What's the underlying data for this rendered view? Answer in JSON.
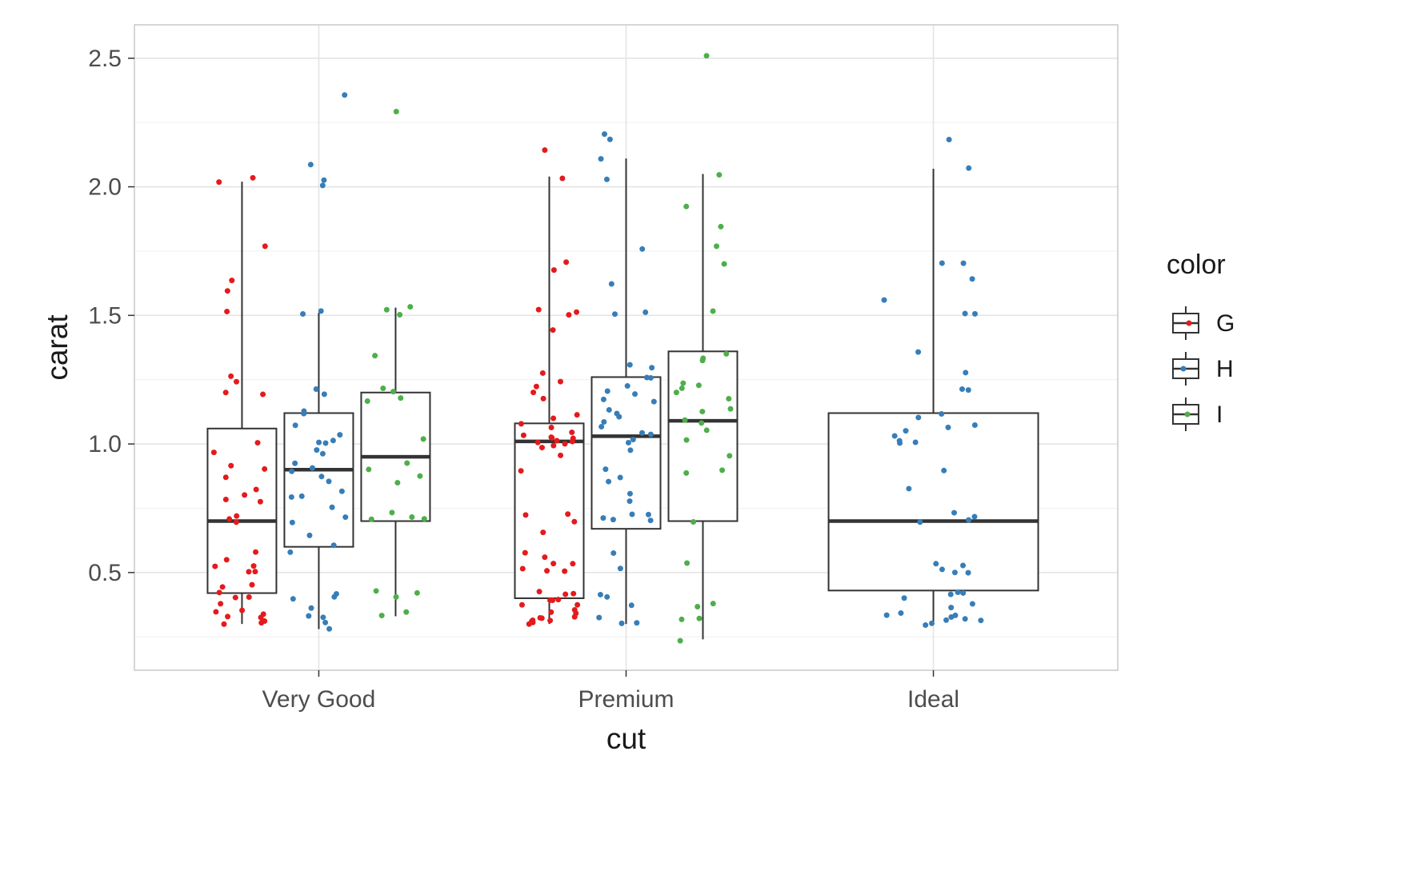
{
  "chart_data": {
    "type": "boxplot",
    "title": "",
    "xlabel": "cut",
    "ylabel": "carat",
    "categories": [
      "Very Good",
      "Premium",
      "Ideal"
    ],
    "y_ticks": [
      0.5,
      1.0,
      1.5,
      2.0,
      2.5
    ],
    "ylim": [
      0.12,
      2.63
    ],
    "grid": true,
    "legend": {
      "title": "color",
      "position": "right",
      "entries": [
        {
          "label": "G",
          "color": "#E41A1C"
        },
        {
          "label": "H",
          "color": "#377EB8"
        },
        {
          "label": "I",
          "color": "#4DAF4A"
        }
      ]
    },
    "colors": {
      "G": "#E41A1C",
      "H": "#377EB8",
      "I": "#4DAF4A"
    },
    "series": [
      {
        "category": "Very Good",
        "color": "G",
        "box": {
          "min": 0.3,
          "q1": 0.42,
          "median": 0.7,
          "q3": 1.06,
          "max": 2.02
        },
        "points": [
          2.03,
          2.02,
          1.77,
          1.63,
          1.6,
          1.51,
          1.26,
          1.24,
          1.2,
          1.19,
          1.01,
          0.96,
          0.92,
          0.9,
          0.87,
          0.83,
          0.8,
          0.79,
          0.77,
          0.72,
          0.71,
          0.7,
          0.58,
          0.55,
          0.53,
          0.52,
          0.51,
          0.5,
          0.46,
          0.44,
          0.42,
          0.41,
          0.4,
          0.38,
          0.36,
          0.35,
          0.34,
          0.33,
          0.32,
          0.31,
          0.3,
          0.3
        ]
      },
      {
        "category": "Very Good",
        "color": "H",
        "box": {
          "min": 0.28,
          "q1": 0.6,
          "median": 0.9,
          "q3": 1.12,
          "max": 1.51
        },
        "points": [
          2.35,
          2.08,
          2.02,
          2.01,
          1.51,
          1.5,
          1.22,
          1.2,
          1.13,
          1.12,
          1.08,
          1.04,
          1.02,
          1.01,
          1.0,
          0.98,
          0.96,
          0.93,
          0.91,
          0.9,
          0.88,
          0.85,
          0.82,
          0.8,
          0.79,
          0.76,
          0.72,
          0.7,
          0.64,
          0.6,
          0.58,
          0.42,
          0.4,
          0.39,
          0.36,
          0.33,
          0.32,
          0.31,
          0.28
        ]
      },
      {
        "category": "Very Good",
        "color": "I",
        "box": {
          "min": 0.33,
          "q1": 0.7,
          "median": 0.95,
          "q3": 1.2,
          "max": 1.53
        },
        "points": [
          2.29,
          1.53,
          1.52,
          1.5,
          1.35,
          1.21,
          1.2,
          1.18,
          1.17,
          1.02,
          0.93,
          0.9,
          0.87,
          0.85,
          0.73,
          0.72,
          0.71,
          0.7,
          0.43,
          0.42,
          0.4,
          0.35,
          0.33
        ]
      },
      {
        "category": "Premium",
        "color": "G",
        "box": {
          "min": 0.3,
          "q1": 0.4,
          "median": 1.01,
          "q3": 1.08,
          "max": 2.04
        },
        "points": [
          2.14,
          2.04,
          1.7,
          1.68,
          1.52,
          1.51,
          1.5,
          1.44,
          1.28,
          1.24,
          1.22,
          1.2,
          1.18,
          1.12,
          1.1,
          1.08,
          1.06,
          1.05,
          1.04,
          1.03,
          1.02,
          1.02,
          1.01,
          1.01,
          1.0,
          1.0,
          0.99,
          0.98,
          0.96,
          0.9,
          0.73,
          0.72,
          0.7,
          0.66,
          0.58,
          0.56,
          0.54,
          0.53,
          0.52,
          0.51,
          0.5,
          0.43,
          0.42,
          0.41,
          0.4,
          0.4,
          0.39,
          0.38,
          0.37,
          0.36,
          0.35,
          0.34,
          0.33,
          0.33,
          0.32,
          0.32,
          0.31,
          0.31,
          0.3,
          0.3
        ]
      },
      {
        "category": "Premium",
        "color": "H",
        "box": {
          "min": 0.3,
          "q1": 0.67,
          "median": 1.03,
          "q3": 1.26,
          "max": 2.11
        },
        "points": [
          2.21,
          2.18,
          2.11,
          2.03,
          1.76,
          1.62,
          1.51,
          1.5,
          1.31,
          1.3,
          1.26,
          1.25,
          1.23,
          1.21,
          1.2,
          1.18,
          1.16,
          1.13,
          1.12,
          1.1,
          1.08,
          1.06,
          1.04,
          1.03,
          1.02,
          1.01,
          0.98,
          0.9,
          0.87,
          0.85,
          0.8,
          0.78,
          0.73,
          0.72,
          0.71,
          0.7,
          0.7,
          0.58,
          0.51,
          0.42,
          0.4,
          0.38,
          0.33,
          0.31,
          0.3
        ]
      },
      {
        "category": "Premium",
        "color": "I",
        "box": {
          "min": 0.24,
          "q1": 0.7,
          "median": 1.09,
          "q3": 1.36,
          "max": 2.05
        },
        "points": [
          2.51,
          2.05,
          1.93,
          1.84,
          1.77,
          1.7,
          1.52,
          1.35,
          1.33,
          1.32,
          1.24,
          1.23,
          1.21,
          1.2,
          1.18,
          1.13,
          1.12,
          1.1,
          1.08,
          1.05,
          1.02,
          0.95,
          0.9,
          0.88,
          0.7,
          0.54,
          0.38,
          0.36,
          0.32,
          0.31,
          0.24
        ]
      },
      {
        "category": "Ideal",
        "color": "H",
        "box": {
          "min": 0.31,
          "q1": 0.43,
          "median": 0.7,
          "q3": 1.12,
          "max": 2.07
        },
        "points": [
          2.19,
          2.07,
          1.7,
          1.7,
          1.64,
          1.56,
          1.5,
          1.5,
          1.36,
          1.28,
          1.22,
          1.21,
          1.12,
          1.1,
          1.08,
          1.06,
          1.05,
          1.03,
          1.02,
          1.01,
          1.0,
          0.9,
          0.82,
          0.73,
          0.71,
          0.7,
          0.7,
          0.53,
          0.52,
          0.51,
          0.5,
          0.5,
          0.43,
          0.42,
          0.41,
          0.4,
          0.38,
          0.36,
          0.35,
          0.34,
          0.33,
          0.33,
          0.32,
          0.32,
          0.31,
          0.31,
          0.3
        ]
      }
    ]
  },
  "style": {
    "box_stroke": "#333333",
    "box_fill": "#ffffff",
    "grid_major": "#E4E4E4",
    "grid_minor": "#F1F1F1",
    "panel_border": "#C9C9C9",
    "tick_color": "#333333",
    "tick_label_color": "#4D4D4D",
    "axis_title_color": "#1A1A1A",
    "legend_text_color": "#1A1A1A"
  }
}
